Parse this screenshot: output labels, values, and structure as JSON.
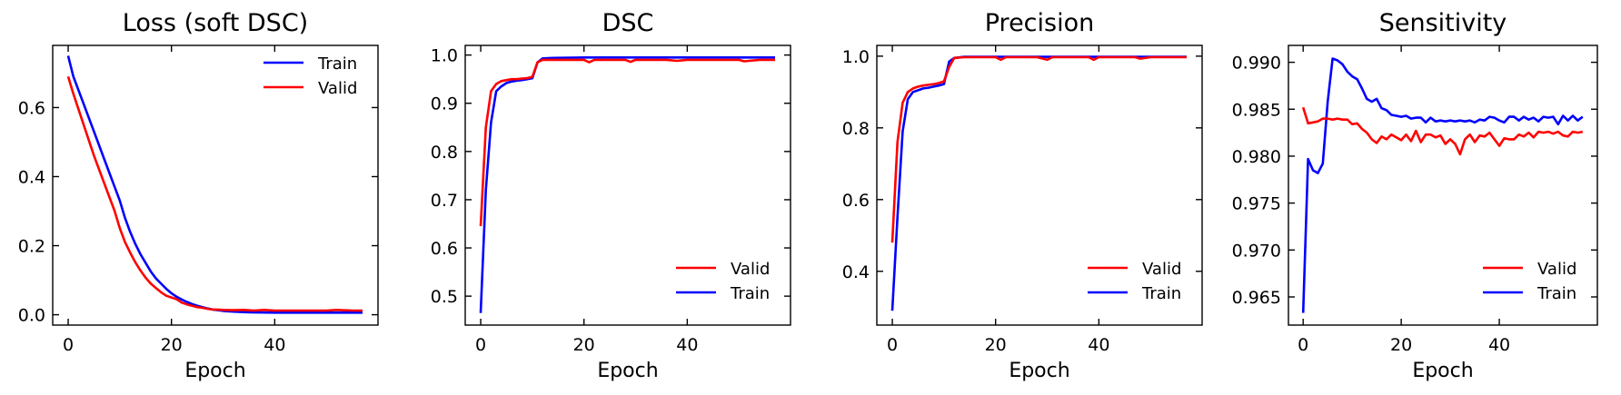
{
  "chart_data": [
    {
      "type": "line",
      "title": "Loss (soft DSC)",
      "xlabel": "Epoch",
      "ylabel": "",
      "xlim": [
        -3,
        60
      ],
      "ylim": [
        -0.03,
        0.78
      ],
      "xticks": [
        0,
        20,
        40
      ],
      "yticks": [
        0.0,
        0.2,
        0.4,
        0.6
      ],
      "yfmt": 1,
      "legend": "top-right",
      "legend_order": [
        0,
        1
      ],
      "series": [
        {
          "name": "Train",
          "color": "#0000ff",
          "x": [
            0,
            1,
            3,
            5,
            7,
            9,
            10,
            11,
            12,
            13,
            14,
            15,
            16,
            17,
            18,
            19,
            20,
            21,
            22,
            23,
            24,
            25,
            26,
            27,
            28,
            29,
            30,
            32,
            35,
            40,
            50,
            57
          ],
          "values": [
            0.75,
            0.69,
            0.61,
            0.53,
            0.45,
            0.37,
            0.33,
            0.28,
            0.24,
            0.205,
            0.175,
            0.15,
            0.125,
            0.105,
            0.09,
            0.075,
            0.062,
            0.052,
            0.044,
            0.037,
            0.031,
            0.026,
            0.022,
            0.018,
            0.015,
            0.013,
            0.011,
            0.009,
            0.007,
            0.006,
            0.006,
            0.006
          ]
        },
        {
          "name": "Valid",
          "color": "#ff0000",
          "x": [
            0,
            1,
            3,
            5,
            7,
            9,
            10,
            11,
            12,
            13,
            14,
            15,
            16,
            17,
            18,
            19,
            20,
            21,
            22,
            23,
            24,
            25,
            26,
            27,
            28,
            29,
            30,
            32,
            34,
            36,
            38,
            40,
            45,
            50,
            52,
            55,
            57
          ],
          "values": [
            0.69,
            0.64,
            0.55,
            0.46,
            0.38,
            0.3,
            0.25,
            0.21,
            0.18,
            0.152,
            0.128,
            0.107,
            0.09,
            0.077,
            0.065,
            0.055,
            0.05,
            0.045,
            0.035,
            0.03,
            0.026,
            0.022,
            0.02,
            0.017,
            0.015,
            0.015,
            0.014,
            0.013,
            0.014,
            0.012,
            0.014,
            0.012,
            0.012,
            0.012,
            0.014,
            0.012,
            0.012
          ]
        }
      ]
    },
    {
      "type": "line",
      "title": "DSC",
      "xlabel": "Epoch",
      "ylabel": "",
      "xlim": [
        -3,
        60
      ],
      "ylim": [
        0.44,
        1.02
      ],
      "xticks": [
        0,
        20,
        40
      ],
      "yticks": [
        0.5,
        0.6,
        0.7,
        0.8,
        0.9,
        1.0
      ],
      "yfmt": 1,
      "legend": "bottom-right",
      "legend_order": [
        1,
        0
      ],
      "series": [
        {
          "name": "Train",
          "color": "#0000ff",
          "x": [
            0,
            1,
            2,
            3,
            4,
            5,
            6,
            7,
            8,
            9,
            10,
            11,
            12,
            14,
            20,
            30,
            40,
            57
          ],
          "values": [
            0.465,
            0.72,
            0.86,
            0.925,
            0.935,
            0.942,
            0.945,
            0.947,
            0.948,
            0.95,
            0.952,
            0.985,
            0.993,
            0.994,
            0.995,
            0.995,
            0.995,
            0.995
          ]
        },
        {
          "name": "Valid",
          "color": "#ff0000",
          "x": [
            0,
            1,
            2,
            3,
            4,
            5,
            6,
            7,
            8,
            9,
            10,
            11,
            12,
            14,
            20,
            21,
            22,
            24,
            28,
            29,
            30,
            32,
            36,
            38,
            40,
            44,
            48,
            50,
            51,
            54,
            57
          ],
          "values": [
            0.645,
            0.85,
            0.925,
            0.94,
            0.946,
            0.948,
            0.95,
            0.95,
            0.951,
            0.952,
            0.955,
            0.985,
            0.99,
            0.99,
            0.99,
            0.985,
            0.99,
            0.99,
            0.99,
            0.986,
            0.99,
            0.99,
            0.99,
            0.988,
            0.99,
            0.99,
            0.99,
            0.99,
            0.987,
            0.99,
            0.99
          ]
        }
      ]
    },
    {
      "type": "line",
      "title": "Precision",
      "xlabel": "Epoch",
      "ylabel": "",
      "xlim": [
        -3,
        60
      ],
      "ylim": [
        0.25,
        1.03
      ],
      "xticks": [
        0,
        20,
        40
      ],
      "yticks": [
        0.4,
        0.6,
        0.8,
        1.0
      ],
      "yfmt": 1,
      "legend": "bottom-right",
      "legend_order": [
        1,
        0
      ],
      "series": [
        {
          "name": "Train",
          "color": "#0000ff",
          "x": [
            0,
            1,
            2,
            3,
            4,
            5,
            6,
            7,
            8,
            9,
            10,
            11,
            12,
            14,
            20,
            30,
            40,
            57
          ],
          "values": [
            0.29,
            0.55,
            0.79,
            0.88,
            0.9,
            0.905,
            0.91,
            0.912,
            0.915,
            0.918,
            0.922,
            0.985,
            0.995,
            0.998,
            0.998,
            0.998,
            0.998,
            0.998
          ]
        },
        {
          "name": "Valid",
          "color": "#ff0000",
          "x": [
            0,
            1,
            2,
            3,
            4,
            5,
            6,
            7,
            8,
            9,
            10,
            11,
            12,
            14,
            20,
            21,
            22,
            26,
            28,
            30,
            31,
            34,
            38,
            39,
            40,
            42,
            47,
            48,
            50,
            52,
            57
          ],
          "values": [
            0.48,
            0.76,
            0.87,
            0.9,
            0.91,
            0.915,
            0.918,
            0.92,
            0.922,
            0.925,
            0.93,
            0.97,
            0.995,
            0.997,
            0.997,
            0.99,
            0.997,
            0.997,
            0.997,
            0.99,
            0.997,
            0.997,
            0.997,
            0.99,
            0.997,
            0.997,
            0.997,
            0.993,
            0.997,
            0.997,
            0.997
          ]
        }
      ]
    },
    {
      "type": "line",
      "title": "Sensitivity",
      "xlabel": "Epoch",
      "ylabel": "",
      "xlim": [
        -3,
        60
      ],
      "ylim": [
        0.962,
        0.9918
      ],
      "xticks": [
        0,
        20,
        40
      ],
      "yticks": [
        0.965,
        0.97,
        0.975,
        0.98,
        0.985,
        0.99
      ],
      "yfmt": 3,
      "legend": "bottom-right",
      "legend_order": [
        1,
        0
      ],
      "series": [
        {
          "name": "Train",
          "color": "#0000ff",
          "x": [
            0,
            1,
            2,
            3,
            4,
            5,
            6,
            7,
            8,
            9,
            10,
            11,
            12,
            13,
            14,
            15,
            16,
            17,
            18,
            19,
            20,
            21,
            22,
            23,
            24,
            25,
            26,
            27,
            28,
            29,
            30,
            31,
            32,
            33,
            34,
            35,
            36,
            37,
            38,
            39,
            40,
            41,
            42,
            43,
            44,
            45,
            46,
            47,
            48,
            49,
            50,
            51,
            52,
            53,
            54,
            55,
            56,
            57
          ],
          "values": [
            0.9633,
            0.9797,
            0.9785,
            0.9782,
            0.9792,
            0.9858,
            0.9904,
            0.9902,
            0.9898,
            0.989,
            0.9885,
            0.9882,
            0.9872,
            0.9861,
            0.9858,
            0.9861,
            0.9851,
            0.9849,
            0.9844,
            0.9843,
            0.9842,
            0.9843,
            0.984,
            0.9841,
            0.9841,
            0.9836,
            0.9841,
            0.9837,
            0.9838,
            0.9837,
            0.9838,
            0.9837,
            0.9838,
            0.9837,
            0.9838,
            0.9836,
            0.9839,
            0.9838,
            0.9842,
            0.9841,
            0.9838,
            0.9836,
            0.9842,
            0.9842,
            0.9838,
            0.9842,
            0.9839,
            0.9841,
            0.9837,
            0.9842,
            0.9841,
            0.9842,
            0.9834,
            0.9843,
            0.9838,
            0.9843,
            0.9838,
            0.9842
          ]
        },
        {
          "name": "Valid",
          "color": "#ff0000",
          "x": [
            0,
            1,
            2,
            3,
            4,
            5,
            6,
            7,
            8,
            9,
            10,
            11,
            12,
            13,
            14,
            15,
            16,
            17,
            18,
            19,
            20,
            21,
            22,
            23,
            24,
            25,
            26,
            27,
            28,
            29,
            30,
            31,
            32,
            33,
            34,
            35,
            36,
            37,
            38,
            39,
            40,
            41,
            42,
            43,
            44,
            45,
            46,
            47,
            48,
            49,
            50,
            51,
            52,
            53,
            54,
            55,
            56,
            57
          ],
          "values": [
            0.9852,
            0.9835,
            0.9836,
            0.9837,
            0.984,
            0.984,
            0.9839,
            0.984,
            0.9839,
            0.9839,
            0.9834,
            0.9835,
            0.9829,
            0.9825,
            0.9818,
            0.9814,
            0.9821,
            0.9818,
            0.9823,
            0.982,
            0.9817,
            0.9823,
            0.9816,
            0.9827,
            0.9815,
            0.9823,
            0.9823,
            0.982,
            0.9822,
            0.9813,
            0.9818,
            0.9813,
            0.9802,
            0.9818,
            0.9823,
            0.9815,
            0.9822,
            0.9821,
            0.9825,
            0.9818,
            0.9811,
            0.9819,
            0.9818,
            0.9818,
            0.9823,
            0.9821,
            0.9825,
            0.982,
            0.9826,
            0.9825,
            0.9826,
            0.9824,
            0.9826,
            0.9822,
            0.9821,
            0.9826,
            0.9825,
            0.9826
          ]
        }
      ]
    }
  ]
}
